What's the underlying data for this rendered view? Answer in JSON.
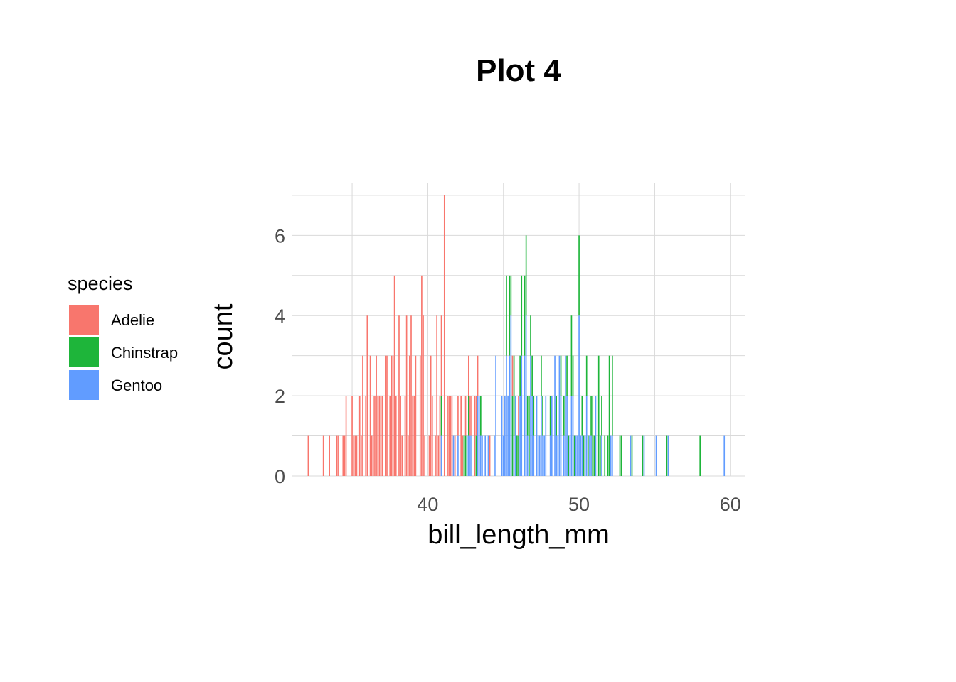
{
  "chart_data": {
    "type": "bar",
    "subtype": "stacked-histogram",
    "title": "Plot 4",
    "xlabel": "bill_length_mm",
    "ylabel": "count",
    "xlim": [
      31.0,
      61.0
    ],
    "ylim": [
      0,
      7.3
    ],
    "x_ticks": [
      "40",
      "50",
      "60"
    ],
    "y_ticks": [
      "0",
      "2",
      "4",
      "6"
    ],
    "grid": true,
    "legend": {
      "title": "species",
      "position": "left",
      "entries": [
        {
          "label": "Adelie",
          "color": "#F8766D"
        },
        {
          "label": "Chinstrap",
          "color": "#1EB53A"
        },
        {
          "label": "Gentoo",
          "color": "#619CFF"
        }
      ]
    },
    "bin_width": 0.1,
    "series": [
      {
        "name": "Adelie",
        "color": "#F8766D",
        "bins": [
          [
            32.1,
            1
          ],
          [
            33.1,
            1
          ],
          [
            33.5,
            1
          ],
          [
            34.0,
            1
          ],
          [
            34.1,
            1
          ],
          [
            34.4,
            1
          ],
          [
            34.5,
            1
          ],
          [
            34.6,
            2
          ],
          [
            35.0,
            2
          ],
          [
            35.1,
            1
          ],
          [
            35.2,
            1
          ],
          [
            35.3,
            1
          ],
          [
            35.5,
            2
          ],
          [
            35.6,
            1
          ],
          [
            35.7,
            3
          ],
          [
            35.9,
            2
          ],
          [
            36.0,
            4
          ],
          [
            36.2,
            3
          ],
          [
            36.3,
            1
          ],
          [
            36.4,
            2
          ],
          [
            36.5,
            2
          ],
          [
            36.6,
            3
          ],
          [
            36.7,
            2
          ],
          [
            36.8,
            2
          ],
          [
            36.9,
            2
          ],
          [
            37.0,
            2
          ],
          [
            37.2,
            3
          ],
          [
            37.3,
            3
          ],
          [
            37.5,
            2
          ],
          [
            37.6,
            3
          ],
          [
            37.7,
            3
          ],
          [
            37.8,
            5
          ],
          [
            37.9,
            2
          ],
          [
            38.1,
            4
          ],
          [
            38.2,
            2
          ],
          [
            38.3,
            1
          ],
          [
            38.5,
            2
          ],
          [
            38.6,
            4
          ],
          [
            38.7,
            1
          ],
          [
            38.8,
            3
          ],
          [
            38.9,
            4
          ],
          [
            39.0,
            2
          ],
          [
            39.1,
            2
          ],
          [
            39.2,
            3
          ],
          [
            39.5,
            3
          ],
          [
            39.6,
            5
          ],
          [
            39.7,
            4
          ],
          [
            39.8,
            1
          ],
          [
            40.1,
            1
          ],
          [
            40.2,
            3
          ],
          [
            40.3,
            2
          ],
          [
            40.5,
            1
          ],
          [
            40.6,
            4
          ],
          [
            40.7,
            1
          ],
          [
            40.8,
            2
          ],
          [
            40.9,
            2
          ],
          [
            41.1,
            7
          ],
          [
            41.3,
            2
          ],
          [
            41.4,
            2
          ],
          [
            41.5,
            2
          ],
          [
            41.6,
            2
          ],
          [
            41.8,
            1
          ],
          [
            42.0,
            1
          ],
          [
            42.2,
            2
          ],
          [
            42.3,
            1
          ],
          [
            42.5,
            1
          ],
          [
            42.7,
            1
          ],
          [
            42.8,
            1
          ],
          [
            42.9,
            1
          ],
          [
            43.1,
            2
          ],
          [
            43.2,
            1
          ],
          [
            43.3,
            1
          ],
          [
            44.1,
            1
          ],
          [
            45.6,
            1
          ],
          [
            46.0,
            1
          ]
        ]
      },
      {
        "name": "Chinstrap",
        "color": "#1EB53A",
        "bins": [
          [
            40.9,
            1
          ],
          [
            42.4,
            1
          ],
          [
            42.5,
            1
          ],
          [
            42.7,
            1
          ],
          [
            43.2,
            1
          ],
          [
            43.5,
            1
          ],
          [
            45.2,
            2
          ],
          [
            45.4,
            2
          ],
          [
            45.5,
            1
          ],
          [
            45.6,
            2
          ],
          [
            45.7,
            2
          ],
          [
            45.9,
            1
          ],
          [
            46.0,
            1
          ],
          [
            46.1,
            1
          ],
          [
            46.2,
            2
          ],
          [
            46.4,
            2
          ],
          [
            46.5,
            2
          ],
          [
            46.6,
            1
          ],
          [
            46.7,
            2
          ],
          [
            46.8,
            1
          ],
          [
            46.9,
            1
          ],
          [
            47.0,
            1
          ],
          [
            47.5,
            1
          ],
          [
            47.6,
            1
          ],
          [
            48.1,
            1
          ],
          [
            48.5,
            1
          ],
          [
            48.8,
            1
          ],
          [
            49.0,
            1
          ],
          [
            49.2,
            1
          ],
          [
            49.3,
            1
          ],
          [
            49.5,
            2
          ],
          [
            49.6,
            1
          ],
          [
            49.7,
            1
          ],
          [
            50.0,
            2
          ],
          [
            50.2,
            1
          ],
          [
            50.3,
            1
          ],
          [
            50.5,
            1
          ],
          [
            50.6,
            1
          ],
          [
            50.8,
            1
          ],
          [
            50.9,
            2
          ],
          [
            51.0,
            1
          ],
          [
            51.3,
            3
          ],
          [
            51.4,
            1
          ],
          [
            51.5,
            1
          ],
          [
            51.7,
            1
          ],
          [
            51.9,
            1
          ],
          [
            52.0,
            3
          ],
          [
            52.2,
            2
          ],
          [
            52.7,
            1
          ],
          [
            52.8,
            1
          ],
          [
            53.5,
            1
          ],
          [
            54.2,
            1
          ],
          [
            55.8,
            1
          ],
          [
            58.0,
            1
          ]
        ]
      },
      {
        "name": "Gentoo",
        "color": "#619CFF",
        "bins": [
          [
            40.9,
            1
          ],
          [
            41.7,
            1
          ],
          [
            42.0,
            1
          ],
          [
            42.6,
            1
          ],
          [
            42.7,
            1
          ],
          [
            42.8,
            1
          ],
          [
            42.9,
            1
          ],
          [
            43.3,
            2
          ],
          [
            43.4,
            2
          ],
          [
            43.5,
            1
          ],
          [
            43.6,
            1
          ],
          [
            43.8,
            1
          ],
          [
            44.0,
            1
          ],
          [
            44.4,
            1
          ],
          [
            44.5,
            3
          ],
          [
            44.9,
            2
          ],
          [
            45.0,
            1
          ],
          [
            45.1,
            2
          ],
          [
            45.2,
            3
          ],
          [
            45.3,
            2
          ],
          [
            45.4,
            3
          ],
          [
            45.5,
            4
          ],
          [
            45.7,
            1
          ],
          [
            45.8,
            2
          ],
          [
            46.1,
            2
          ],
          [
            46.2,
            3
          ],
          [
            46.4,
            3
          ],
          [
            46.5,
            4
          ],
          [
            46.6,
            1
          ],
          [
            46.8,
            3
          ],
          [
            46.9,
            2
          ],
          [
            47.0,
            1
          ],
          [
            47.2,
            2
          ],
          [
            47.3,
            1
          ],
          [
            47.4,
            1
          ],
          [
            47.5,
            2
          ],
          [
            47.6,
            1
          ],
          [
            47.7,
            1
          ],
          [
            47.8,
            2
          ],
          [
            48.1,
            1
          ],
          [
            48.2,
            2
          ],
          [
            48.4,
            3
          ],
          [
            48.5,
            1
          ],
          [
            48.6,
            1
          ],
          [
            48.7,
            3
          ],
          [
            48.8,
            2
          ],
          [
            49.0,
            1
          ],
          [
            49.1,
            3
          ],
          [
            49.2,
            2
          ],
          [
            49.4,
            1
          ],
          [
            49.5,
            2
          ],
          [
            49.6,
            2
          ],
          [
            49.8,
            1
          ],
          [
            49.9,
            1
          ],
          [
            50.0,
            4
          ],
          [
            50.1,
            1
          ],
          [
            50.2,
            1
          ],
          [
            50.4,
            1
          ],
          [
            50.5,
            2
          ],
          [
            50.7,
            1
          ],
          [
            50.8,
            1
          ],
          [
            51.1,
            2
          ],
          [
            51.5,
            1
          ],
          [
            52.1,
            1
          ],
          [
            52.2,
            1
          ],
          [
            53.4,
            1
          ],
          [
            54.3,
            1
          ],
          [
            55.1,
            1
          ],
          [
            55.9,
            1
          ],
          [
            59.6,
            1
          ]
        ]
      }
    ]
  }
}
